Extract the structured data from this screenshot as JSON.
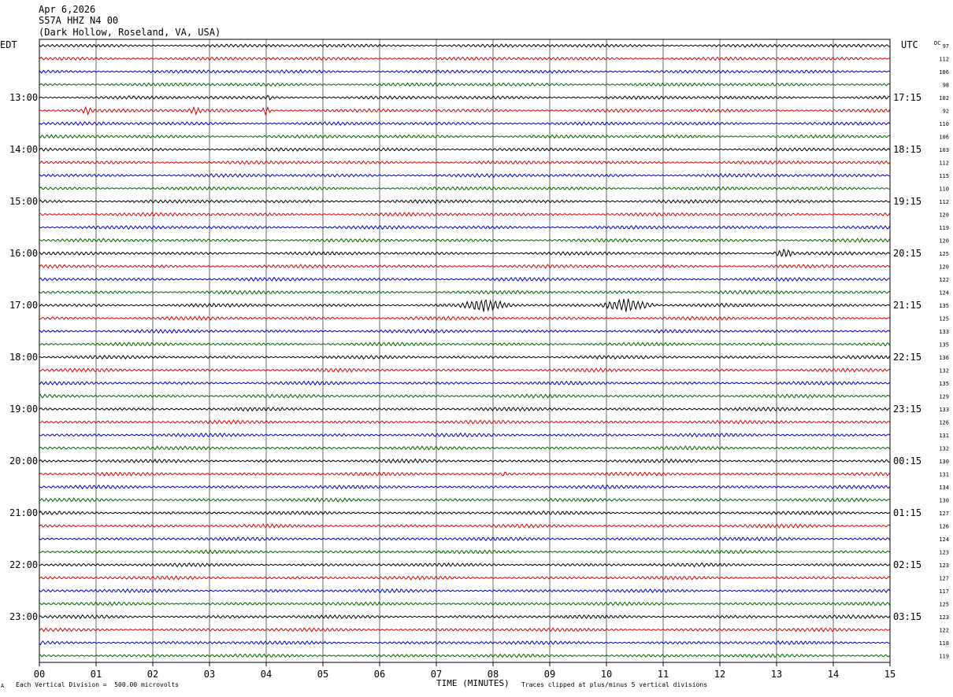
{
  "header": {
    "date": "Apr 6,2026",
    "station": "S57A HHZ N4 00",
    "location": "(Dark Hollow, Roseland, VA, USA)"
  },
  "labels": {
    "left_tz": "EDT",
    "right_tz": "UTC",
    "dc": "DC"
  },
  "footer": {
    "scale": "Each Vertical Division =  500.00 microvolts",
    "xlabel": "TIME (MINUTES)",
    "clip": "Traces clipped at plus/minus 5 vertical divisions",
    "corner": "A"
  },
  "colors": {
    "cycle": [
      "#000000",
      "#e00000",
      "#0000c8",
      "#006400"
    ],
    "grid": "#000000"
  },
  "chart_data": {
    "type": "line",
    "subtype": "helicorder",
    "xlim": [
      0,
      15
    ],
    "x_ticks": [
      "00",
      "01",
      "02",
      "03",
      "04",
      "05",
      "06",
      "07",
      "08",
      "09",
      "10",
      "11",
      "12",
      "13",
      "14",
      "15"
    ],
    "traces_per_hour": 4,
    "left_hour_labels": [
      "13:00",
      "14:00",
      "15:00",
      "16:00",
      "17:00",
      "18:00",
      "19:00",
      "20:00",
      "21:00",
      "22:00",
      "23:00"
    ],
    "right_hour_labels": [
      "17:15",
      "18:15",
      "19:15",
      "20:15",
      "21:15",
      "22:15",
      "23:15",
      "00:15",
      "01:15",
      "02:15",
      "03:15"
    ],
    "dc_offsets": [
      97,
      112,
      106,
      98,
      102,
      92,
      110,
      106,
      103,
      112,
      115,
      110,
      112,
      120,
      119,
      120,
      125,
      120,
      122,
      124,
      135,
      125,
      133,
      135,
      136,
      132,
      135,
      129,
      133,
      126,
      131,
      132,
      130,
      131,
      134,
      130,
      127,
      126,
      124,
      123,
      123,
      127,
      117,
      125,
      123,
      122,
      118,
      119
    ],
    "events": [
      {
        "trace": 4,
        "start_min": 4.0,
        "end_min": 4.1,
        "level": "moderate"
      },
      {
        "trace": 5,
        "start_min": 0.7,
        "end_min": 1.0,
        "level": "moderate"
      },
      {
        "trace": 5,
        "start_min": 2.6,
        "end_min": 2.9,
        "level": "moderate"
      },
      {
        "trace": 5,
        "start_min": 3.9,
        "end_min": 4.1,
        "level": "moderate"
      },
      {
        "trace": 16,
        "start_min": 12.9,
        "end_min": 13.4,
        "level": "moderate"
      },
      {
        "trace": 20,
        "start_min": 7.3,
        "end_min": 8.4,
        "level": "strong"
      },
      {
        "trace": 20,
        "start_min": 9.8,
        "end_min": 10.9,
        "level": "strong"
      },
      {
        "trace": 33,
        "start_min": 8.1,
        "end_min": 8.3,
        "level": "minor"
      }
    ]
  }
}
